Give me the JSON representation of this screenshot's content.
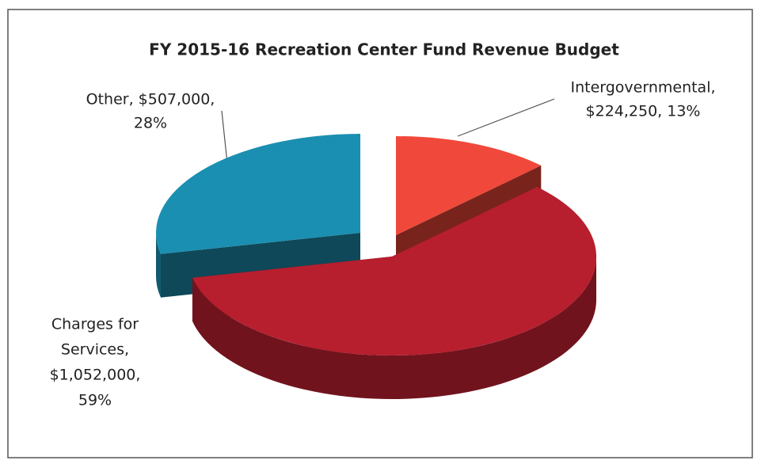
{
  "chart_data": {
    "type": "pie",
    "title": "FY 2015-16 Recreation Center Fund Revenue Budget",
    "categories": [
      "Intergovernmental",
      "Charges for Services",
      "Other"
    ],
    "values": [
      224250,
      1052000,
      507000
    ],
    "value_labels": [
      "$224,250",
      "$1,052,000",
      "$507,000"
    ],
    "percents": [
      13,
      59,
      28
    ],
    "percent_labels": [
      "13%",
      "59%",
      "28%"
    ],
    "data_labels": [
      [
        "Intergovernmental,",
        "$224,250, 13%"
      ],
      [
        "Charges for",
        "Services,",
        "$1,052,000,",
        "59%"
      ],
      [
        "Other, $507,000,",
        "28%"
      ]
    ],
    "colors": [
      "#f0483a",
      "#b71e2e",
      "#1b8fb1"
    ]
  }
}
